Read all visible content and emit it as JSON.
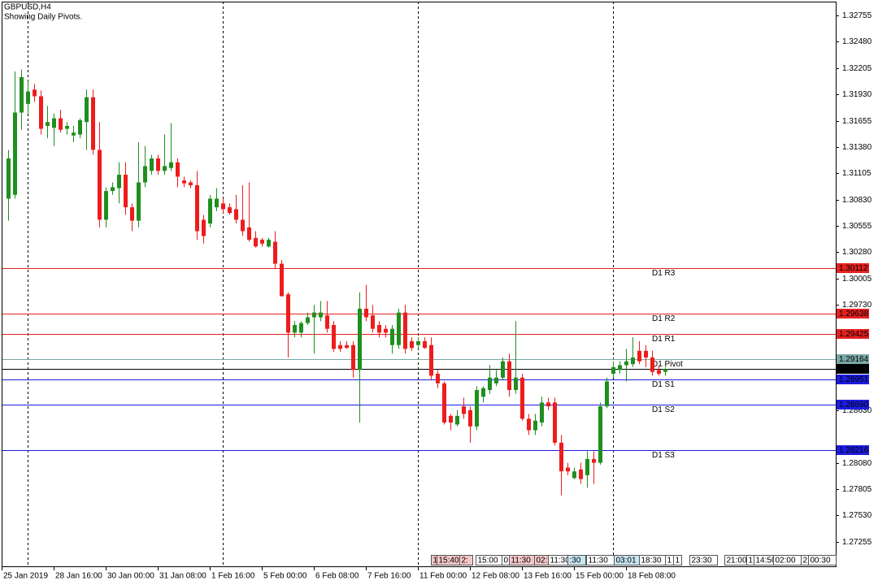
{
  "chart_data": {
    "type": "candlestick",
    "title": "GBPUSD,H4",
    "subtitle": "Showing Daily Pivots.",
    "up_color": "#1f8f1f",
    "down_color": "#ee1c1c",
    "categories": [
      "25 Jan 2019",
      null,
      null,
      null,
      null,
      null,
      null,
      null,
      "28 Jan 16:00",
      null,
      null,
      null,
      null,
      null,
      null,
      null,
      "30 Jan 00:00",
      null,
      null,
      null,
      null,
      null,
      null,
      null,
      "31 Jan 08:00",
      null,
      null,
      null,
      null,
      null,
      null,
      null,
      "1 Feb 16:00",
      null,
      null,
      null,
      null,
      null,
      null,
      null,
      "5 Feb 00:00",
      null,
      null,
      null,
      null,
      null,
      null,
      null,
      "6 Feb 08:00",
      null,
      null,
      null,
      null,
      null,
      null,
      null,
      "7 Feb 16:00",
      null,
      null,
      null,
      null,
      null,
      null,
      null,
      "11 Feb 00:00",
      null,
      null,
      null,
      null,
      null,
      null,
      null,
      "12 Feb 08:00",
      null,
      null,
      null,
      null,
      null,
      null,
      null,
      "13 Feb 16:00",
      null,
      null,
      null,
      null,
      null,
      null,
      null,
      "15 Feb 00:00",
      null,
      null,
      null,
      null,
      null,
      null,
      null,
      "18 Feb 08:00",
      null,
      null,
      null,
      null,
      null
    ],
    "open": [
      1.3084,
      1.3088,
      1.3174,
      1.3183,
      1.3198,
      1.3191,
      1.316,
      1.3158,
      1.3168,
      1.3157,
      1.315,
      1.3151,
      1.3164,
      1.319,
      1.3135,
      1.3062,
      1.3092,
      1.3095,
      1.3109,
      1.3075,
      1.3061,
      1.3101,
      1.3113,
      1.3126,
      1.3113,
      1.3116,
      1.3122,
      1.3103,
      1.3101,
      1.3098,
      1.3062,
      1.3058,
      1.3075,
      1.3079,
      1.3075,
      1.3073,
      1.3062,
      1.3054,
      1.3043,
      1.3041,
      1.3034,
      1.3039,
      1.3016,
      1.2984,
      1.2944,
      1.2944,
      1.2954,
      1.296,
      1.296,
      1.2962,
      1.2952,
      1.2931,
      1.2931,
      1.2931,
      1.2905,
      1.2969,
      1.2962,
      1.2952,
      1.2948,
      1.2931,
      1.2931,
      1.2965,
      1.2935,
      1.2931,
      1.2935,
      1.2931,
      1.2901,
      1.2891,
      1.2857,
      1.2848,
      1.2867,
      1.2863,
      1.2846,
      1.2877,
      1.2884,
      1.2891,
      1.2897,
      1.2914,
      1.2884,
      1.2897,
      1.2854,
      1.2842,
      1.285,
      1.2871,
      1.2871,
      1.2829,
      1.2803,
      1.2792,
      1.2801,
      1.2795,
      1.2812,
      1.2808,
      1.2867,
      1.2901,
      1.2905,
      1.291,
      1.2911,
      1.2925,
      1.2925,
      1.2918,
      1.2905,
      1.2903
    ],
    "high": [
      1.3135,
      1.3217,
      1.3219,
      1.3207,
      1.3204,
      1.3197,
      1.3181,
      1.3173,
      1.3177,
      1.3164,
      1.316,
      1.3168,
      1.3198,
      1.3198,
      1.3164,
      1.3096,
      1.3101,
      1.3122,
      1.3122,
      1.3079,
      1.3143,
      1.3139,
      1.313,
      1.313,
      1.3151,
      1.3163,
      1.3126,
      1.3107,
      1.3103,
      1.3113,
      1.3067,
      1.3088,
      1.3095,
      1.3084,
      1.3079,
      1.3088,
      1.3098,
      1.3101,
      1.305,
      1.3043,
      1.3043,
      1.305,
      1.302,
      1.2986,
      1.2956,
      1.2956,
      1.2965,
      1.2973,
      1.2977,
      1.2977,
      1.2956,
      1.2935,
      1.2935,
      1.2935,
      1.2986,
      1.2994,
      1.2973,
      1.2956,
      1.2952,
      1.2952,
      1.2969,
      1.2973,
      1.2939,
      1.2939,
      1.2939,
      1.2939,
      1.2905,
      1.2893,
      1.2859,
      1.2863,
      1.2876,
      1.2867,
      1.2888,
      1.2888,
      1.291,
      1.2905,
      1.2918,
      1.2922,
      1.2956,
      1.2901,
      1.2859,
      1.2859,
      1.2877,
      1.2876,
      1.2876,
      1.2837,
      1.2808,
      1.2803,
      1.2808,
      1.282,
      1.282,
      1.2871,
      1.2897,
      1.2914,
      1.2914,
      1.2927,
      1.2939,
      1.2935,
      1.2931,
      1.2925,
      1.291,
      1.2908
    ],
    "low": [
      1.3061,
      1.3084,
      1.3156,
      1.3173,
      1.3185,
      1.3151,
      1.3147,
      1.3139,
      1.3153,
      1.3151,
      1.3143,
      1.3147,
      1.3135,
      1.313,
      1.3054,
      1.3054,
      1.3088,
      1.3079,
      1.3067,
      1.305,
      1.3054,
      1.3096,
      1.3109,
      1.3109,
      1.3109,
      1.3113,
      1.3096,
      1.3096,
      1.3095,
      1.3041,
      1.3037,
      1.3054,
      1.3071,
      1.3069,
      1.3067,
      1.3058,
      1.3045,
      1.3039,
      1.3033,
      1.3034,
      1.3033,
      1.3011,
      1.2982,
      1.2918,
      1.2939,
      1.2939,
      1.2952,
      1.2922,
      1.2956,
      1.2944,
      1.2924,
      1.2924,
      1.2927,
      1.2897,
      1.285,
      1.2956,
      1.2944,
      1.2939,
      1.2939,
      1.2922,
      1.2927,
      1.2922,
      1.2925,
      1.2927,
      1.2927,
      1.2894,
      1.2886,
      1.2848,
      1.2842,
      1.2846,
      1.2854,
      1.2829,
      1.2842,
      1.2871,
      1.288,
      1.2888,
      1.2894,
      1.2877,
      1.288,
      1.2852,
      1.2837,
      1.2837,
      1.2846,
      1.2863,
      1.2826,
      1.2774,
      1.2795,
      1.2791,
      1.2786,
      1.2782,
      1.2786,
      1.2806,
      1.2865,
      1.2897,
      1.2901,
      1.2893,
      1.2908,
      1.2911,
      1.2908,
      1.2899,
      1.2899,
      1.2899
    ],
    "close": [
      1.3126,
      1.3174,
      1.3211,
      1.3196,
      1.3191,
      1.3157,
      1.3164,
      1.3168,
      1.3156,
      1.316,
      1.3153,
      1.3166,
      1.319,
      1.3135,
      1.3062,
      1.3092,
      1.3096,
      1.3109,
      1.3075,
      1.3061,
      1.3101,
      1.3118,
      1.3126,
      1.3113,
      1.3118,
      1.3122,
      1.3107,
      1.31,
      1.3098,
      1.305,
      1.3045,
      1.3084,
      1.3084,
      1.3073,
      1.3069,
      1.3062,
      1.305,
      1.3041,
      1.3034,
      1.3037,
      1.3041,
      1.3016,
      1.2982,
      1.2944,
      1.2952,
      1.2954,
      1.296,
      1.2965,
      1.2965,
      1.2948,
      1.2927,
      1.2927,
      1.2928,
      1.2905,
      1.2969,
      1.296,
      1.2948,
      1.2944,
      1.2944,
      1.2948,
      1.2965,
      1.2927,
      1.2928,
      1.2935,
      1.2928,
      1.2899,
      1.2891,
      1.285,
      1.285,
      1.2857,
      1.2859,
      1.2846,
      1.2884,
      1.2886,
      1.2897,
      1.2897,
      1.2914,
      1.2884,
      1.2897,
      1.2854,
      1.2842,
      1.2852,
      1.2871,
      1.2867,
      1.2829,
      1.2799,
      1.2799,
      1.2799,
      1.2791,
      1.2812,
      1.2808,
      1.2867,
      1.2893,
      1.2908,
      1.291,
      1.2914,
      1.2918,
      1.2914,
      1.2918,
      1.2903,
      1.2901,
      1.2906
    ],
    "ylim": [
      1.26998,
      1.32916
    ],
    "yticks": [
      1.32755,
      {
        "value": 1.3248,
        "label": "1.32480"
      },
      1.32205,
      {
        "value": 1.3193,
        "label": "1.31930"
      },
      1.31655,
      {
        "value": 1.3138,
        "label": "1.31380"
      },
      1.31105,
      {
        "value": 1.3083,
        "label": "1.30830"
      },
      1.30555,
      {
        "value": 1.3028,
        "label": "1.30280"
      },
      1.30005,
      {
        "value": 1.2973,
        "label": "1.29730"
      },
      {
        "value": 1.2863,
        "label": "1.28630"
      },
      {
        "value": 1.2808,
        "label": "1.28080"
      },
      1.27805,
      {
        "value": 1.2753,
        "label": "1.27530"
      },
      1.27255
    ],
    "pivots": [
      {
        "name": "D1 R3",
        "value": 1.30112,
        "color": "#e52020"
      },
      {
        "name": "D1 R2",
        "value": 1.29638,
        "color": "#e52020"
      },
      {
        "name": "D1 R1",
        "value": 1.29425,
        "color": "#e52020"
      },
      {
        "name": "D1 Pivot",
        "value": 1.29164,
        "color": "#7aa7a7"
      },
      {
        "name": "D1 S1",
        "value": 1.28951,
        "color": "#1c1ce0"
      },
      {
        "name": "D1 S2",
        "value": 1.2869,
        "label": "1.28690",
        "color": "#1c1ce0"
      },
      {
        "name": "D1 S3",
        "value": 1.28216,
        "color": "#1c1ce0"
      }
    ],
    "current_price": {
      "value": 1.2906,
      "label": "1.29060",
      "color": "#000000"
    },
    "events": [
      {
        "text": "1",
        "color": "#f6c8c8"
      },
      {
        "text": "15:40",
        "color": "#f6c8c8"
      },
      {
        "text": "2:",
        "color": "#f6c8c8"
      },
      {
        "text": "15:00",
        "color": "#ffffff"
      },
      {
        "text": "0",
        "color": "#ffffff"
      },
      {
        "text": "11:30",
        "color": "#f6c8c8"
      },
      {
        "text": "02:",
        "color": "#f6c8c8"
      },
      {
        "text": "11:30",
        "color": "#ffffff"
      },
      {
        "text": ":30",
        "color": "#c8e6f4"
      },
      {
        "text": "11:30",
        "color": "#ffffff"
      },
      {
        "text": "03:01",
        "color": "#c8e6f4"
      },
      {
        "text": "18:30",
        "color": "#ffffff"
      },
      {
        "text": "1",
        "color": "#ffffff"
      },
      {
        "text": "1",
        "color": "#ffffff"
      },
      {
        "text": "23:30",
        "color": "#ffffff"
      },
      {
        "text": "21:00",
        "color": "#ffffff"
      },
      {
        "text": "1",
        "color": "#ffffff"
      },
      {
        "text": "14:50",
        "color": "#ffffff"
      },
      {
        "text": "02:00",
        "color": "#ffffff"
      },
      {
        "text": "2",
        "color": "#ffffff"
      },
      {
        "text": "00:30",
        "color": "#ffffff"
      }
    ]
  }
}
